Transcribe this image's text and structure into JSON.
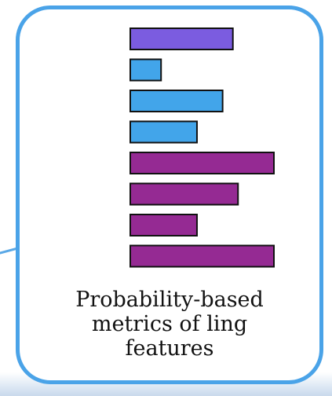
{
  "caption": {
    "lines": [
      "Probability-based",
      "metrics of ling",
      "features"
    ]
  },
  "colors": {
    "border": "#4aa3e8",
    "bar_outline": "#111111"
  },
  "chart_data": {
    "type": "bar",
    "orientation": "horizontal",
    "categories": [
      "",
      "",
      "",
      "",
      "",
      "",
      "",
      ""
    ],
    "values": [
      1.0,
      0.3,
      0.9,
      0.65,
      1.4,
      1.05,
      0.65,
      1.4
    ],
    "colors": [
      "#7b5ce0",
      "#42a5ea",
      "#42a5ea",
      "#42a5ea",
      "#952a93",
      "#952a93",
      "#952a93",
      "#952a93"
    ],
    "xlim": [
      0,
      1.4
    ],
    "grid": false,
    "legend": false
  }
}
